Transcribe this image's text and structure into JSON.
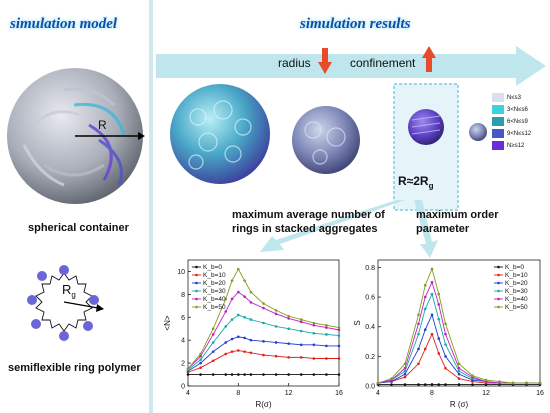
{
  "left": {
    "title": "simulation model",
    "container_label": "spherical container",
    "container_radius_symbol": "R",
    "ring_label": "semiflexible ring polymer",
    "ring_radius_symbol": "R",
    "ring_radius_subscript": "g"
  },
  "right": {
    "title": "simulation results",
    "arrow_label_radius": "radius",
    "arrow_label_confinement": "confinement",
    "highlight_label_main": "R≈2R",
    "highlight_label_sub": "g",
    "caption_left": "maximum average number of rings in stacked aggregates",
    "caption_right": "maximum order parameter",
    "legend_bins": [
      {
        "label": "N≤s3",
        "color": "#d9def0"
      },
      {
        "label": "3<N≤s6",
        "color": "#3fd0e0"
      },
      {
        "label": "6<N≤s9",
        "color": "#2d9cae"
      },
      {
        "label": "9<N≤s12",
        "color": "#4a55c8"
      },
      {
        "label": "N≥s12",
        "color": "#6a2fd6"
      }
    ]
  },
  "chart_data": [
    {
      "type": "line",
      "ylabel": "<N>",
      "xlabel": "R(σ)",
      "xlim": [
        4,
        16
      ],
      "ylim": [
        0,
        11
      ],
      "xticks": [
        4,
        8,
        12,
        16
      ],
      "yticks": [
        0,
        2,
        4,
        6,
        8,
        10
      ],
      "x": [
        4,
        5,
        6,
        7,
        7.5,
        8,
        8.5,
        9,
        10,
        11,
        12,
        13,
        14,
        15,
        16
      ],
      "series": [
        {
          "name": "K_b=0",
          "color": "#111111",
          "values": [
            1.0,
            1.0,
            1.0,
            1.0,
            1.0,
            1.0,
            1.0,
            1.0,
            1.0,
            1.0,
            1.0,
            1.0,
            1.0,
            1.0,
            1.0
          ]
        },
        {
          "name": "K_b=10",
          "color": "#e02020",
          "values": [
            1.2,
            1.6,
            2.2,
            2.8,
            3.0,
            3.1,
            3.0,
            2.9,
            2.7,
            2.6,
            2.5,
            2.5,
            2.4,
            2.4,
            2.4
          ]
        },
        {
          "name": "K_b=20",
          "color": "#1f3fd0",
          "values": [
            1.3,
            2.0,
            3.0,
            3.8,
            4.1,
            4.3,
            4.2,
            4.0,
            3.9,
            3.8,
            3.7,
            3.6,
            3.6,
            3.5,
            3.5
          ]
        },
        {
          "name": "K_b=30",
          "color": "#18a8a8",
          "values": [
            1.4,
            2.3,
            3.8,
            5.2,
            5.8,
            6.2,
            6.0,
            5.8,
            5.5,
            5.2,
            5.0,
            4.8,
            4.6,
            4.5,
            4.4
          ]
        },
        {
          "name": "K_b=40",
          "color": "#c020c0",
          "values": [
            1.5,
            2.6,
            4.5,
            6.5,
            7.6,
            8.2,
            7.8,
            7.3,
            6.8,
            6.3,
            5.9,
            5.6,
            5.3,
            5.1,
            4.9
          ]
        },
        {
          "name": "K_b=50",
          "color": "#8a9a20",
          "values": [
            1.5,
            2.8,
            5.0,
            7.6,
            9.2,
            10.2,
            9.2,
            8.2,
            7.2,
            6.6,
            6.1,
            5.8,
            5.5,
            5.3,
            5.1
          ]
        }
      ]
    },
    {
      "type": "line",
      "ylabel": "S",
      "xlabel": "R (σ)",
      "xlim": [
        4,
        16
      ],
      "ylim": [
        0,
        0.85
      ],
      "xticks": [
        4,
        8,
        12,
        16
      ],
      "yticks": [
        0.0,
        0.2,
        0.4,
        0.6,
        0.8
      ],
      "x": [
        4,
        5,
        6,
        7,
        7.5,
        8,
        8.5,
        9,
        10,
        11,
        12,
        13,
        14,
        15,
        16
      ],
      "series": [
        {
          "name": "K_b=0",
          "color": "#111111",
          "values": [
            0.01,
            0.01,
            0.01,
            0.01,
            0.01,
            0.01,
            0.01,
            0.01,
            0.01,
            0.01,
            0.01,
            0.01,
            0.01,
            0.01,
            0.01
          ]
        },
        {
          "name": "K_b=10",
          "color": "#e02020",
          "values": [
            0.02,
            0.03,
            0.06,
            0.15,
            0.25,
            0.35,
            0.22,
            0.12,
            0.05,
            0.03,
            0.02,
            0.02,
            0.02,
            0.02,
            0.02
          ]
        },
        {
          "name": "K_b=20",
          "color": "#1f3fd0",
          "values": [
            0.02,
            0.03,
            0.08,
            0.25,
            0.38,
            0.48,
            0.32,
            0.2,
            0.08,
            0.04,
            0.03,
            0.02,
            0.02,
            0.02,
            0.02
          ]
        },
        {
          "name": "K_b=30",
          "color": "#18a8a8",
          "values": [
            0.02,
            0.04,
            0.1,
            0.35,
            0.52,
            0.62,
            0.45,
            0.28,
            0.1,
            0.05,
            0.03,
            0.02,
            0.02,
            0.02,
            0.02
          ]
        },
        {
          "name": "K_b=40",
          "color": "#c020c0",
          "values": [
            0.02,
            0.04,
            0.12,
            0.42,
            0.6,
            0.7,
            0.55,
            0.35,
            0.12,
            0.06,
            0.03,
            0.02,
            0.02,
            0.02,
            0.02
          ]
        },
        {
          "name": "K_b=50",
          "color": "#8a9a20",
          "values": [
            0.02,
            0.05,
            0.15,
            0.48,
            0.68,
            0.79,
            0.62,
            0.42,
            0.15,
            0.07,
            0.04,
            0.03,
            0.02,
            0.02,
            0.02
          ]
        }
      ]
    }
  ]
}
